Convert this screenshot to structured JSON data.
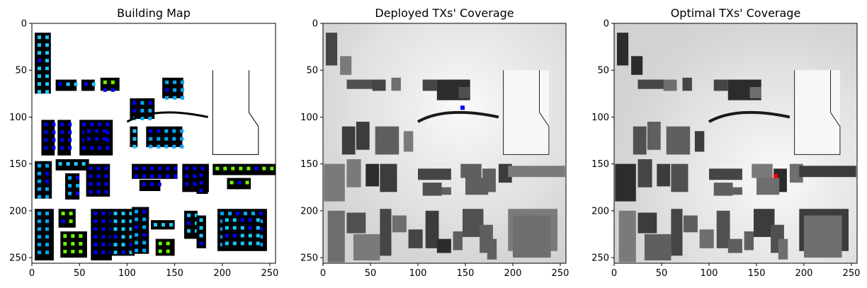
{
  "chart_data": [
    {
      "type": "heatmap",
      "title": "Building Map",
      "xlim": [
        0,
        256
      ],
      "ylim": [
        256,
        0
      ],
      "xticks": [
        0,
        50,
        100,
        150,
        200,
        250
      ],
      "yticks": [
        0,
        50,
        100,
        150,
        200,
        250
      ],
      "marker_colors": [
        "#0000ff",
        "#1ec8ff",
        "#6aff00",
        "#00aaff"
      ]
    },
    {
      "type": "heatmap",
      "title": "Deployed TXs' Coverage",
      "xlim": [
        0,
        256
      ],
      "ylim": [
        256,
        0
      ],
      "xticks": [
        0,
        50,
        100,
        150,
        200,
        250
      ],
      "yticks": [
        0,
        50,
        100,
        150,
        200,
        250
      ],
      "tx_marker": {
        "x": 147,
        "y": 90,
        "color": "#0000ff"
      }
    },
    {
      "type": "heatmap",
      "title": "Optimal TXs' Coverage",
      "xlim": [
        0,
        256
      ],
      "ylim": [
        256,
        0
      ],
      "xticks": [
        0,
        50,
        100,
        150,
        200,
        250
      ],
      "yticks": [
        0,
        50,
        100,
        150,
        200,
        250
      ],
      "tx_marker": {
        "x": 170,
        "y": 163,
        "color": "#ff0000"
      }
    }
  ]
}
